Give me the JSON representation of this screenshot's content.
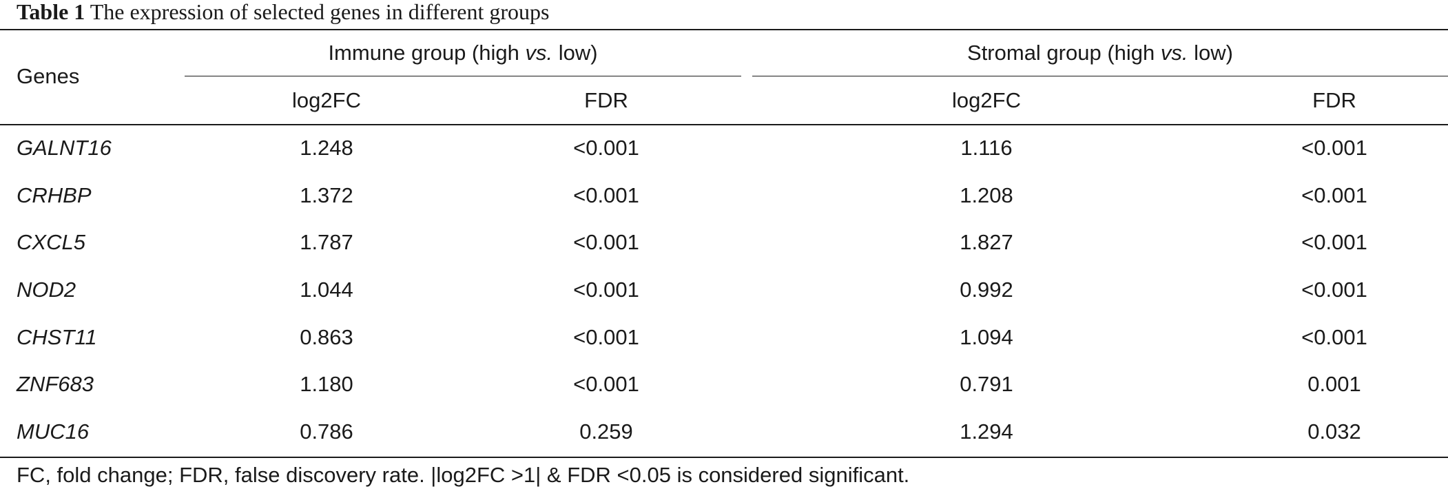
{
  "caption": {
    "label": "Table 1",
    "text": "The expression of selected genes in different groups"
  },
  "table": {
    "genes_header": "Genes",
    "groups": [
      {
        "name_pre": "Immune group (high ",
        "name_vs": "vs.",
        "name_post": " low)"
      },
      {
        "name_pre": "Stromal group (high ",
        "name_vs": "vs.",
        "name_post": " low)"
      }
    ],
    "subheaders": [
      "log2FC",
      "FDR",
      "log2FC",
      "FDR"
    ],
    "rows": [
      {
        "gene": "GALNT16",
        "values": [
          "1.248",
          "<0.001",
          "1.116",
          "<0.001"
        ]
      },
      {
        "gene": "CRHBP",
        "values": [
          "1.372",
          "<0.001",
          "1.208",
          "<0.001"
        ]
      },
      {
        "gene": "CXCL5",
        "values": [
          "1.787",
          "<0.001",
          "1.827",
          "<0.001"
        ]
      },
      {
        "gene": "NOD2",
        "values": [
          "1.044",
          "<0.001",
          "0.992",
          "<0.001"
        ]
      },
      {
        "gene": "CHST11",
        "values": [
          "0.863",
          "<0.001",
          "1.094",
          "<0.001"
        ]
      },
      {
        "gene": "ZNF683",
        "values": [
          "1.180",
          "<0.001",
          "0.791",
          "0.001"
        ]
      },
      {
        "gene": "MUC16",
        "values": [
          "0.786",
          "0.259",
          "1.294",
          "0.032"
        ]
      }
    ]
  },
  "footnote": "FC, fold change; FDR, false discovery rate. |log2FC >1| & FDR <0.05 is considered significant."
}
